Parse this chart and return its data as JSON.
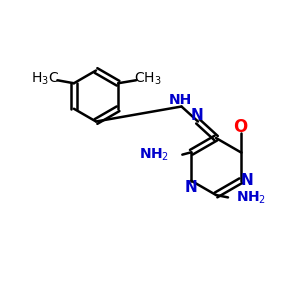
{
  "bg_color": "#ffffff",
  "black": "#000000",
  "blue": "#0000cc",
  "red": "#ff0000",
  "bond_lw": 1.8,
  "figsize": [
    3.0,
    3.0
  ],
  "dpi": 100,
  "xlim": [
    0,
    10
  ],
  "ylim": [
    0,
    10
  ]
}
